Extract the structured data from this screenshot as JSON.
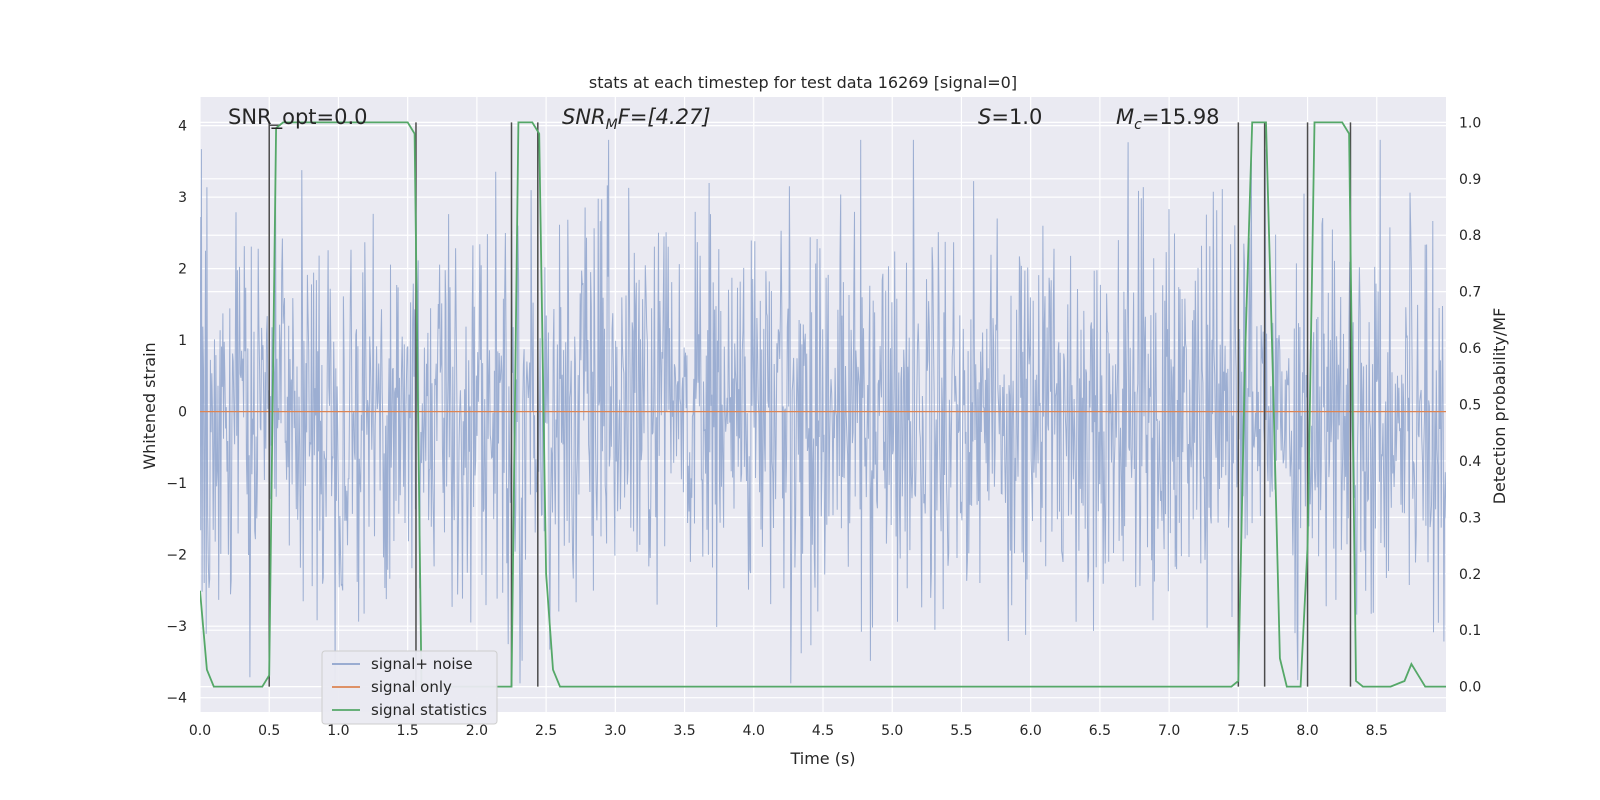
{
  "chart_data": {
    "type": "line",
    "title": "stats at each timestep for test data 16269 [signal=0]",
    "xlabel": "Time (s)",
    "ylabel": "Whitened strain",
    "y2label": "Detection probability/MF",
    "xlim": [
      0.0,
      9.0
    ],
    "ylim": [
      -4.2,
      4.4
    ],
    "y2lim": [
      -0.045,
      1.045
    ],
    "x_ticks": [
      "0.0",
      "0.5",
      "1.0",
      "1.5",
      "2.0",
      "2.5",
      "3.0",
      "3.5",
      "4.0",
      "4.5",
      "5.0",
      "5.5",
      "6.0",
      "6.5",
      "7.0",
      "7.5",
      "8.0",
      "8.5"
    ],
    "y_ticks": [
      "4",
      "3",
      "2",
      "1",
      "0",
      "−1",
      "−2",
      "−3",
      "−4"
    ],
    "y2_ticks": [
      "1.0",
      "0.9",
      "0.8",
      "0.7",
      "0.6",
      "0.5",
      "0.4",
      "0.3",
      "0.2",
      "0.1",
      "0.0"
    ],
    "grid": true,
    "legend_position": "lower-left",
    "annotations": {
      "snr_opt": "SNR_opt=0.0",
      "snr_mf_symbol": "SNR",
      "snr_mf_sub": "M",
      "snr_mf_rest": "F=[4.27]",
      "s_symbol": "S",
      "s_rest": "=1.0",
      "mc_symbol": "M",
      "mc_sub": "c",
      "mc_rest": "=15.98"
    },
    "series": [
      {
        "name": "signal+ noise",
        "color": "#8ea3cc",
        "description_range": [
          -3.8,
          3.8
        ]
      },
      {
        "name": "signal only",
        "color": "#dd8452",
        "values_constant": 0.0
      },
      {
        "name": "signal statistics",
        "color": "#55a868",
        "x": [
          0.0,
          0.05,
          0.1,
          0.15,
          0.2,
          0.25,
          0.3,
          0.35,
          0.4,
          0.45,
          0.5,
          0.55,
          0.6,
          0.7,
          0.8,
          0.9,
          1.0,
          1.1,
          1.2,
          1.3,
          1.4,
          1.5,
          1.55,
          1.6,
          1.65,
          1.7,
          1.8,
          1.9,
          2.0,
          2.1,
          2.2,
          2.25,
          2.3,
          2.35,
          2.4,
          2.45,
          2.5,
          2.55,
          2.6,
          3.0,
          3.5,
          4.0,
          4.5,
          5.0,
          5.5,
          6.0,
          6.5,
          7.0,
          7.45,
          7.5,
          7.55,
          7.6,
          7.65,
          7.7,
          7.75,
          7.8,
          7.85,
          7.9,
          7.95,
          8.0,
          8.05,
          8.1,
          8.15,
          8.2,
          8.25,
          8.3,
          8.35,
          8.4,
          8.5,
          8.6,
          8.7,
          8.75,
          8.8,
          8.85,
          8.9,
          8.95,
          9.0
        ],
        "values": [
          0.17,
          0.03,
          0.0,
          0.0,
          0.0,
          0.0,
          0.0,
          0.0,
          0.0,
          0.0,
          0.02,
          0.99,
          1.0,
          1.0,
          1.0,
          1.0,
          1.0,
          1.0,
          1.0,
          1.0,
          1.0,
          1.0,
          0.98,
          0.0,
          0.0,
          0.0,
          0.0,
          0.0,
          0.0,
          0.0,
          0.0,
          0.0,
          1.0,
          1.0,
          1.0,
          0.98,
          0.2,
          0.03,
          0.0,
          0.0,
          0.0,
          0.0,
          0.0,
          0.0,
          0.0,
          0.0,
          0.0,
          0.0,
          0.0,
          0.01,
          0.6,
          1.0,
          1.0,
          1.0,
          0.55,
          0.05,
          0.0,
          0.0,
          0.0,
          0.25,
          1.0,
          1.0,
          1.0,
          1.0,
          1.0,
          0.98,
          0.01,
          0.0,
          0.0,
          0.0,
          0.01,
          0.04,
          0.02,
          0.0,
          0.0,
          0.0,
          0.0
        ]
      }
    ],
    "vertical_markers_x": [
      0.5,
      1.56,
      2.25,
      2.44,
      7.5,
      7.69,
      8.0,
      8.31
    ],
    "legend": [
      "signal+ noise",
      "signal only",
      "signal statistics"
    ]
  },
  "colors": {
    "plot_bg": "#eaeaf2",
    "grid": "#ffffff",
    "noise": "#8ea3cc",
    "signal": "#dd8452",
    "stats": "#55a868",
    "marker": "#4c4c4c"
  }
}
